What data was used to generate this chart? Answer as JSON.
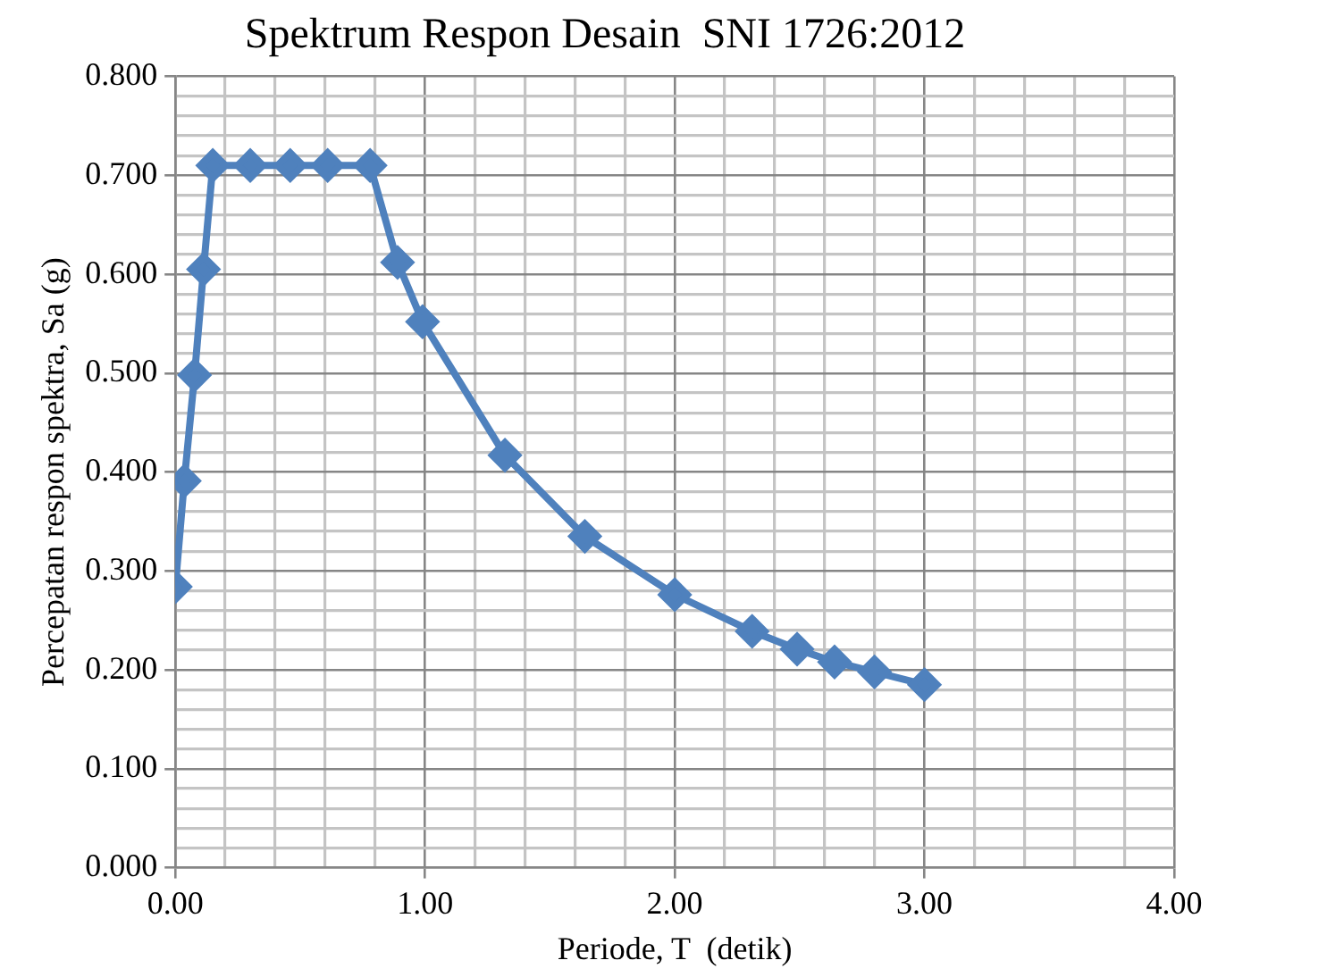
{
  "chart_data": {
    "type": "line",
    "title": "Spektrum Respon Desain  SNI 1726:2012",
    "xlabel": "Periode, T  (detik)",
    "ylabel": "Percepatan respon spektra, Sa (g)",
    "x": [
      0,
      0.036,
      0.077,
      0.113,
      0.15,
      0.3,
      0.46,
      0.61,
      0.78,
      0.89,
      0.99,
      1.32,
      1.64,
      2.0,
      2.31,
      2.49,
      2.64,
      2.8,
      3.0
    ],
    "series": [
      {
        "color": "#4f81bd",
        "values": [
          0.284,
          0.391,
          0.498,
          0.605,
          0.71,
          0.71,
          0.71,
          0.71,
          0.71,
          0.612,
          0.552,
          0.417,
          0.335,
          0.276,
          0.239,
          0.221,
          0.208,
          0.198,
          0.185
        ]
      }
    ],
    "xlim": [
      0,
      4
    ],
    "ylim": [
      0,
      0.8
    ],
    "xticks": [
      {
        "value": 0,
        "label": "0.00"
      },
      {
        "value": 0.2,
        "label": null
      },
      {
        "value": 0.4,
        "label": null
      },
      {
        "value": 0.6,
        "label": null
      },
      {
        "value": 0.8,
        "label": null
      },
      {
        "value": 1,
        "label": "1.00"
      },
      {
        "value": 1.2,
        "label": null
      },
      {
        "value": 1.4,
        "label": null
      },
      {
        "value": 1.6,
        "label": null
      },
      {
        "value": 1.8,
        "label": null
      },
      {
        "value": 2,
        "label": "2.00"
      },
      {
        "value": 2.2,
        "label": null
      },
      {
        "value": 2.4,
        "label": null
      },
      {
        "value": 2.6,
        "label": null
      },
      {
        "value": 2.8,
        "label": null
      },
      {
        "value": 3,
        "label": "3.00"
      },
      {
        "value": 3.2,
        "label": null
      },
      {
        "value": 3.4,
        "label": null
      },
      {
        "value": 3.6,
        "label": null
      },
      {
        "value": 3.8,
        "label": null
      },
      {
        "value": 4,
        "label": "4.00"
      }
    ],
    "yticks": [
      {
        "value": 0,
        "label": "0.000"
      },
      {
        "value": 0.02,
        "label": null
      },
      {
        "value": 0.04,
        "label": null
      },
      {
        "value": 0.06,
        "label": null
      },
      {
        "value": 0.08,
        "label": null
      },
      {
        "value": 0.1,
        "label": "0.100"
      },
      {
        "value": 0.12,
        "label": null
      },
      {
        "value": 0.14,
        "label": null
      },
      {
        "value": 0.16,
        "label": null
      },
      {
        "value": 0.18,
        "label": null
      },
      {
        "value": 0.2,
        "label": "0.200"
      },
      {
        "value": 0.22,
        "label": null
      },
      {
        "value": 0.24,
        "label": null
      },
      {
        "value": 0.26,
        "label": null
      },
      {
        "value": 0.28,
        "label": null
      },
      {
        "value": 0.3,
        "label": "0.300"
      },
      {
        "value": 0.32,
        "label": null
      },
      {
        "value": 0.34,
        "label": null
      },
      {
        "value": 0.36,
        "label": null
      },
      {
        "value": 0.38,
        "label": null
      },
      {
        "value": 0.4,
        "label": "0.400"
      },
      {
        "value": 0.42,
        "label": null
      },
      {
        "value": 0.44,
        "label": null
      },
      {
        "value": 0.46,
        "label": null
      },
      {
        "value": 0.48,
        "label": null
      },
      {
        "value": 0.5,
        "label": "0.500"
      },
      {
        "value": 0.52,
        "label": null
      },
      {
        "value": 0.54,
        "label": null
      },
      {
        "value": 0.56,
        "label": null
      },
      {
        "value": 0.58,
        "label": null
      },
      {
        "value": 0.6,
        "label": "0.600"
      },
      {
        "value": 0.62,
        "label": null
      },
      {
        "value": 0.64,
        "label": null
      },
      {
        "value": 0.66,
        "label": null
      },
      {
        "value": 0.68,
        "label": null
      },
      {
        "value": 0.7,
        "label": "0.700"
      },
      {
        "value": 0.72,
        "label": null
      },
      {
        "value": 0.74,
        "label": null
      },
      {
        "value": 0.76,
        "label": null
      },
      {
        "value": 0.78,
        "label": null
      },
      {
        "value": 0.8,
        "label": "0.800"
      }
    ],
    "grid": true,
    "legend": false,
    "marker": "diamond",
    "line_style": "solid"
  }
}
